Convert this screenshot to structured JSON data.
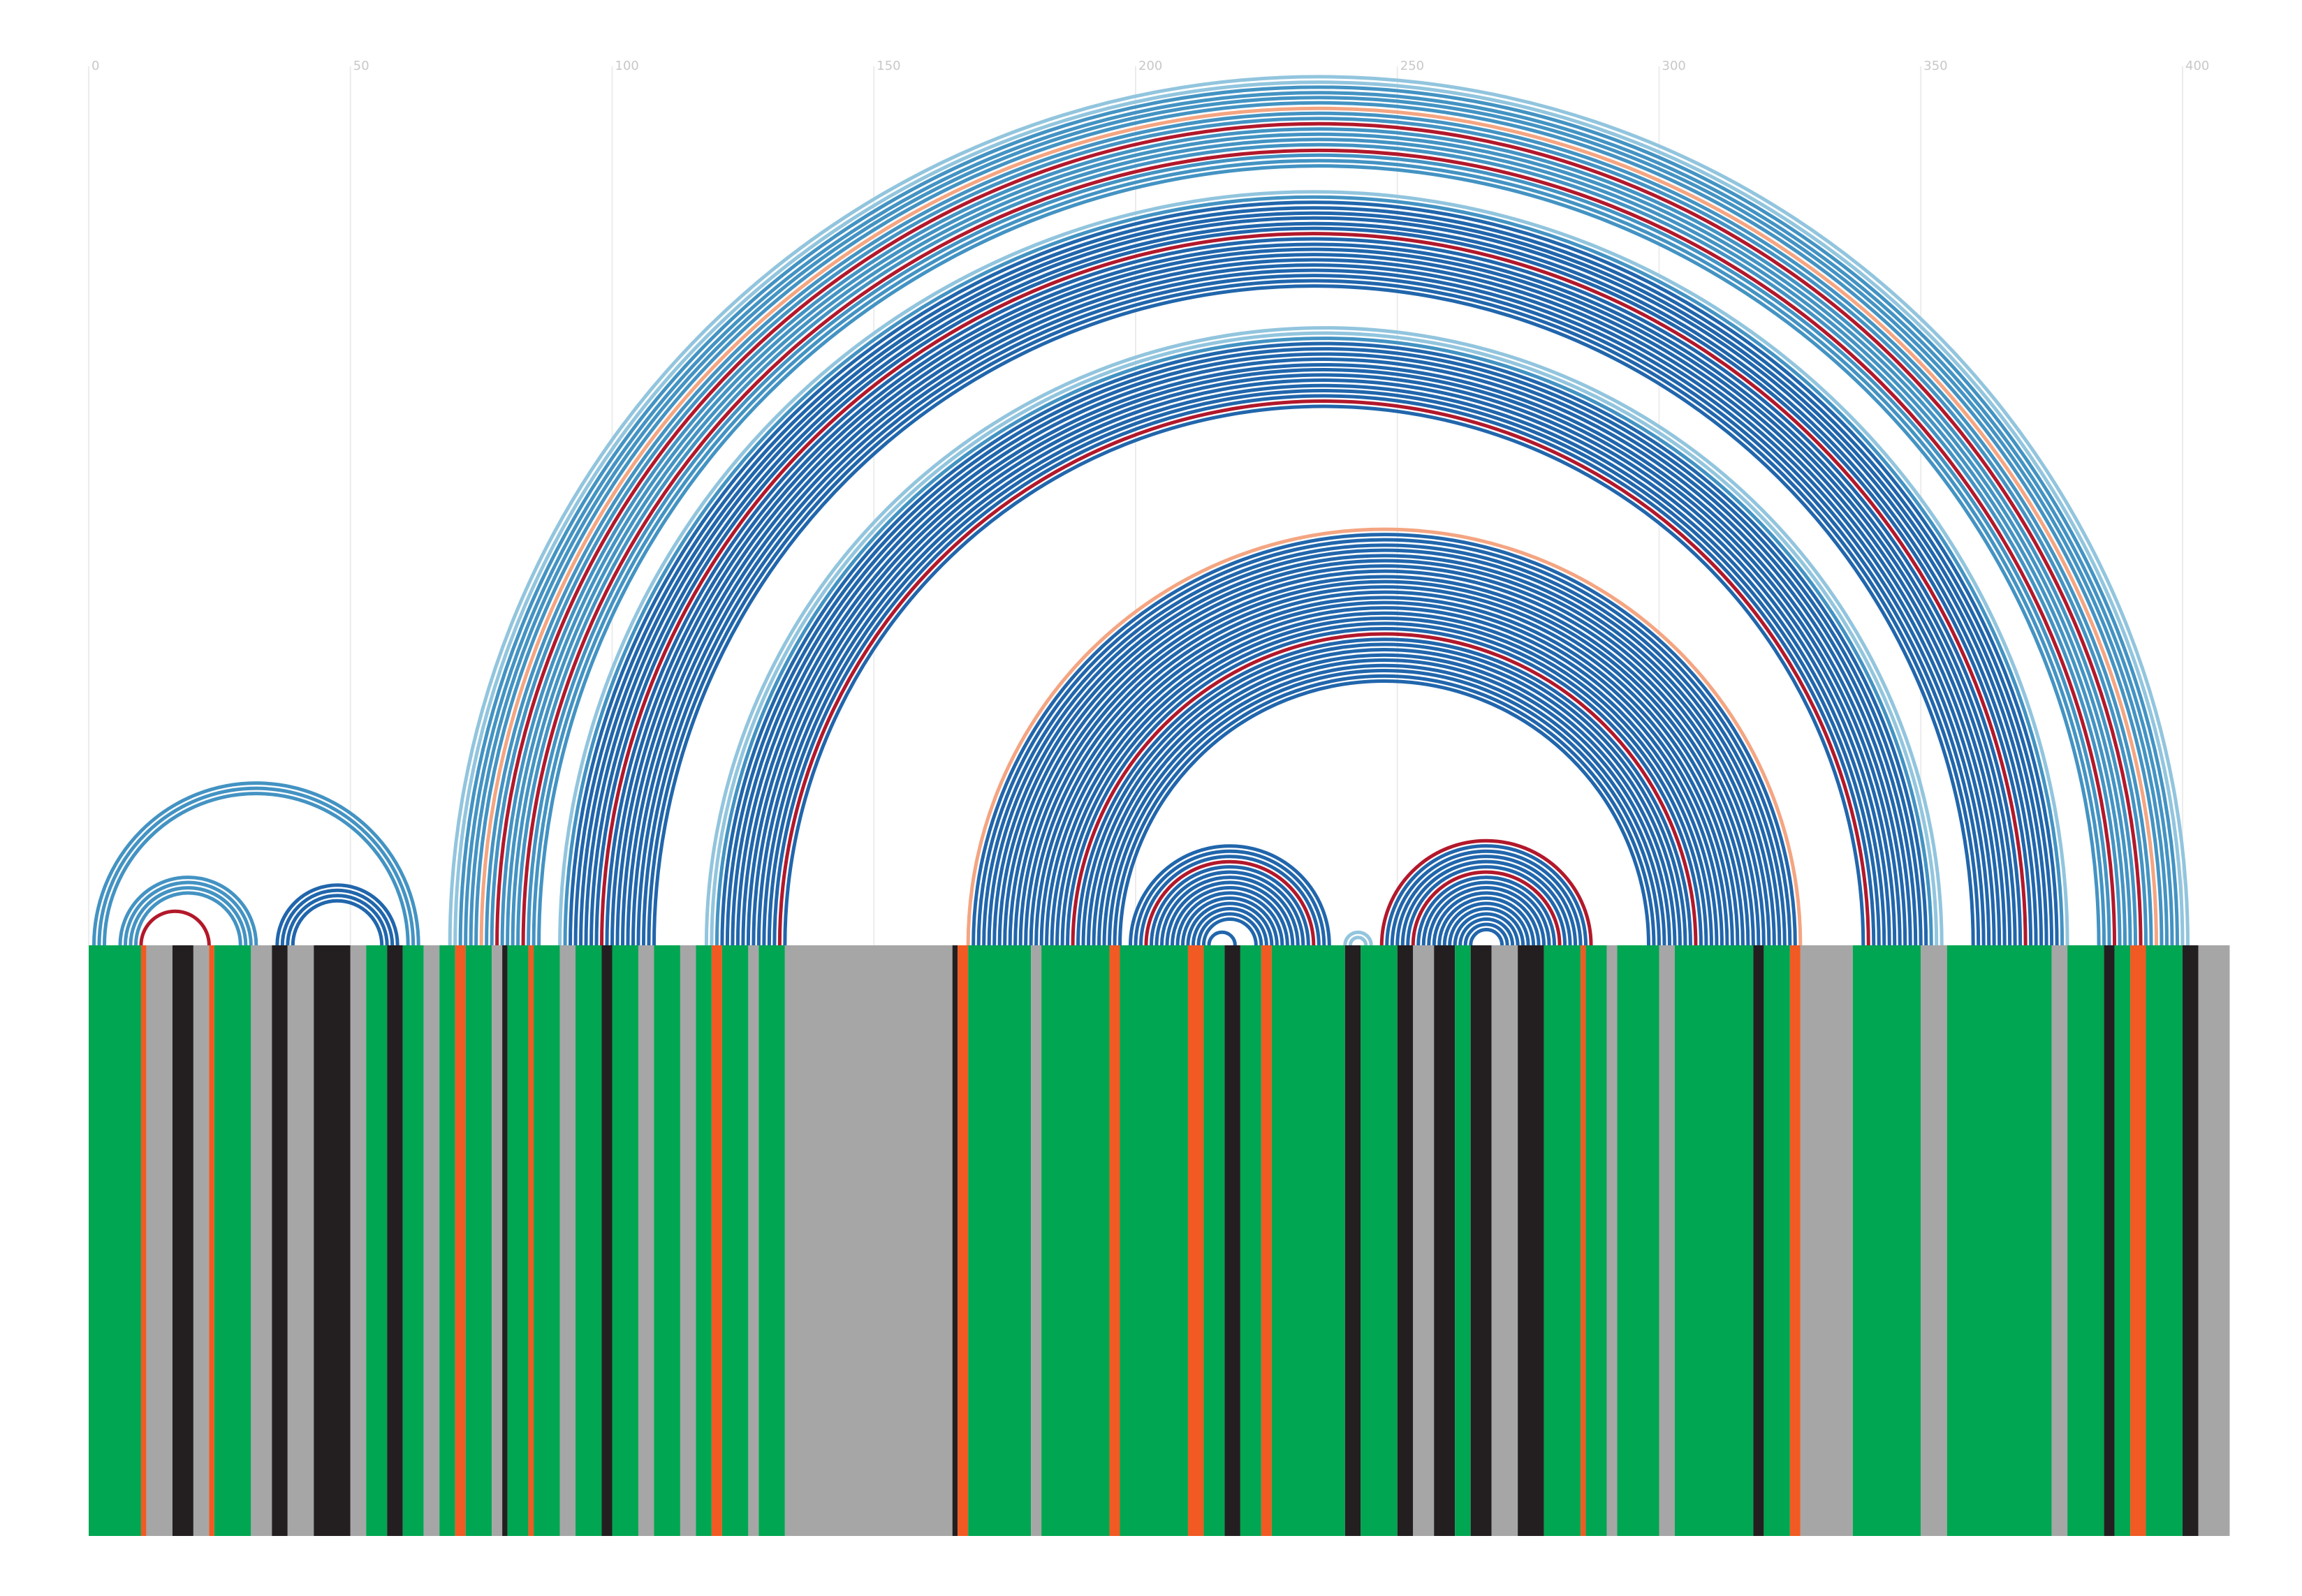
{
  "chart_data": {
    "type": "arc",
    "xlim": [
      0,
      400
    ],
    "xticks": [
      0,
      50,
      100,
      150,
      200,
      250,
      300,
      350,
      400
    ],
    "grid": true,
    "palette": {
      "D": "#2166ac",
      "M": "#4393c3",
      "L": "#92c5de",
      "R": "#b2182b",
      "O": "#f4a582"
    },
    "pairs": [
      [
        1,
        63,
        "M"
      ],
      [
        2,
        62,
        "M"
      ],
      [
        3,
        61,
        "M"
      ],
      [
        6,
        32,
        "M"
      ],
      [
        7,
        31,
        "M"
      ],
      [
        8,
        30,
        "M"
      ],
      [
        9,
        29,
        "M"
      ],
      [
        10,
        23,
        "R"
      ],
      [
        36,
        59,
        "D"
      ],
      [
        37,
        58,
        "D"
      ],
      [
        38,
        57,
        "D"
      ],
      [
        39,
        56,
        "D"
      ],
      [
        69,
        401,
        "L"
      ],
      [
        70,
        400,
        "L"
      ],
      [
        71,
        399,
        "M"
      ],
      [
        72,
        398,
        "M"
      ],
      [
        73,
        397,
        "M"
      ],
      [
        74,
        396,
        "M"
      ],
      [
        75,
        395,
        "O"
      ],
      [
        76,
        394,
        "M"
      ],
      [
        77,
        393,
        "M"
      ],
      [
        78,
        392,
        "R"
      ],
      [
        79,
        391,
        "M"
      ],
      [
        80,
        390,
        "M"
      ],
      [
        81,
        389,
        "M"
      ],
      [
        82,
        388,
        "M"
      ],
      [
        83,
        387,
        "R"
      ],
      [
        84,
        386,
        "M"
      ],
      [
        85,
        385,
        "M"
      ],
      [
        86,
        384,
        "M"
      ],
      [
        90,
        378,
        "L"
      ],
      [
        91,
        377,
        "M"
      ],
      [
        92,
        376,
        "D"
      ],
      [
        93,
        375,
        "D"
      ],
      [
        94,
        374,
        "D"
      ],
      [
        95,
        373,
        "D"
      ],
      [
        96,
        372,
        "D"
      ],
      [
        97,
        371,
        "D"
      ],
      [
        98,
        370,
        "R"
      ],
      [
        99,
        369,
        "D"
      ],
      [
        100,
        368,
        "D"
      ],
      [
        101,
        367,
        "D"
      ],
      [
        102,
        366,
        "D"
      ],
      [
        103,
        365,
        "D"
      ],
      [
        104,
        364,
        "D"
      ],
      [
        105,
        363,
        "D"
      ],
      [
        106,
        362,
        "D"
      ],
      [
        107,
        361,
        "D"
      ],
      [
        108,
        360,
        "D"
      ],
      [
        118,
        354,
        "L"
      ],
      [
        119,
        353,
        "L"
      ],
      [
        120,
        352,
        "M"
      ],
      [
        121,
        351,
        "D"
      ],
      [
        122,
        350,
        "D"
      ],
      [
        123,
        349,
        "D"
      ],
      [
        124,
        348,
        "D"
      ],
      [
        125,
        347,
        "D"
      ],
      [
        126,
        346,
        "D"
      ],
      [
        127,
        345,
        "D"
      ],
      [
        128,
        344,
        "D"
      ],
      [
        129,
        343,
        "D"
      ],
      [
        130,
        342,
        "D"
      ],
      [
        131,
        341,
        "D"
      ],
      [
        132,
        340,
        "R"
      ],
      [
        133,
        339,
        "D"
      ],
      [
        168,
        327,
        "O"
      ],
      [
        169,
        326,
        "D"
      ],
      [
        170,
        325,
        "D"
      ],
      [
        171,
        324,
        "D"
      ],
      [
        172,
        323,
        "D"
      ],
      [
        173,
        322,
        "D"
      ],
      [
        174,
        321,
        "D"
      ],
      [
        175,
        320,
        "D"
      ],
      [
        176,
        319,
        "D"
      ],
      [
        177,
        318,
        "D"
      ],
      [
        178,
        317,
        "D"
      ],
      [
        179,
        316,
        "D"
      ],
      [
        180,
        315,
        "D"
      ],
      [
        181,
        314,
        "D"
      ],
      [
        182,
        313,
        "D"
      ],
      [
        183,
        312,
        "D"
      ],
      [
        184,
        311,
        "D"
      ],
      [
        185,
        310,
        "D"
      ],
      [
        186,
        309,
        "D"
      ],
      [
        187,
        308,
        "D"
      ],
      [
        188,
        307,
        "R"
      ],
      [
        189,
        306,
        "D"
      ],
      [
        190,
        305,
        "D"
      ],
      [
        191,
        304,
        "D"
      ],
      [
        192,
        303,
        "D"
      ],
      [
        193,
        302,
        "D"
      ],
      [
        194,
        301,
        "D"
      ],
      [
        195,
        300,
        "D"
      ],
      [
        196,
        299,
        "D"
      ],
      [
        197,
        298,
        "D"
      ],
      [
        199,
        237,
        "D"
      ],
      [
        200,
        236,
        "D"
      ],
      [
        201,
        235,
        "D"
      ],
      [
        202,
        234,
        "R"
      ],
      [
        203,
        233,
        "D"
      ],
      [
        204,
        232,
        "D"
      ],
      [
        205,
        231,
        "D"
      ],
      [
        206,
        230,
        "D"
      ],
      [
        207,
        229,
        "D"
      ],
      [
        208,
        228,
        "D"
      ],
      [
        209,
        227,
        "D"
      ],
      [
        210,
        226,
        "D"
      ],
      [
        211,
        225,
        "D"
      ],
      [
        212,
        224,
        "D"
      ],
      [
        213,
        223,
        "D"
      ],
      [
        214,
        219,
        "D"
      ],
      [
        240,
        245,
        "L"
      ],
      [
        241,
        244,
        "L"
      ],
      [
        247,
        287,
        "R"
      ],
      [
        248,
        286,
        "D"
      ],
      [
        249,
        285,
        "D"
      ],
      [
        250,
        284,
        "D"
      ],
      [
        251,
        283,
        "D"
      ],
      [
        252,
        282,
        "D"
      ],
      [
        253,
        281,
        "R"
      ],
      [
        254,
        280,
        "D"
      ],
      [
        255,
        279,
        "D"
      ],
      [
        256,
        278,
        "D"
      ],
      [
        257,
        277,
        "D"
      ],
      [
        258,
        276,
        "D"
      ],
      [
        259,
        275,
        "D"
      ],
      [
        260,
        274,
        "D"
      ],
      [
        261,
        273,
        "D"
      ],
      [
        262,
        272,
        "D"
      ],
      [
        263,
        271,
        "D"
      ],
      [
        264,
        270,
        "D"
      ]
    ],
    "alignment_palette": {
      "G": "#00a651",
      "K": "#231f20",
      "A": "#a6a6a6",
      "O": "#f15a22"
    },
    "alignment": [
      [
        0,
        10,
        "G"
      ],
      [
        10,
        11,
        "O"
      ],
      [
        11,
        16,
        "A"
      ],
      [
        16,
        20,
        "K"
      ],
      [
        20,
        23,
        "A"
      ],
      [
        23,
        24,
        "O"
      ],
      [
        24,
        31,
        "G"
      ],
      [
        31,
        35,
        "A"
      ],
      [
        35,
        38,
        "K"
      ],
      [
        38,
        43,
        "A"
      ],
      [
        43,
        50,
        "K"
      ],
      [
        50,
        53,
        "A"
      ],
      [
        53,
        57,
        "G"
      ],
      [
        57,
        60,
        "K"
      ],
      [
        60,
        64,
        "G"
      ],
      [
        64,
        67,
        "A"
      ],
      [
        67,
        70,
        "G"
      ],
      [
        70,
        72,
        "O"
      ],
      [
        72,
        77,
        "G"
      ],
      [
        77,
        79,
        "A"
      ],
      [
        79,
        80,
        "K"
      ],
      [
        80,
        84,
        "G"
      ],
      [
        84,
        85,
        "O"
      ],
      [
        85,
        90,
        "G"
      ],
      [
        90,
        93,
        "A"
      ],
      [
        93,
        98,
        "G"
      ],
      [
        98,
        100,
        "K"
      ],
      [
        100,
        105,
        "G"
      ],
      [
        105,
        108,
        "A"
      ],
      [
        108,
        113,
        "G"
      ],
      [
        113,
        116,
        "A"
      ],
      [
        116,
        119,
        "G"
      ],
      [
        119,
        121,
        "O"
      ],
      [
        121,
        126,
        "G"
      ],
      [
        126,
        128,
        "A"
      ],
      [
        128,
        133,
        "G"
      ],
      [
        133,
        165,
        "A"
      ],
      [
        165,
        166,
        "K"
      ],
      [
        166,
        168,
        "O"
      ],
      [
        168,
        180,
        "G"
      ],
      [
        180,
        182,
        "A"
      ],
      [
        182,
        195,
        "G"
      ],
      [
        195,
        197,
        "O"
      ],
      [
        197,
        210,
        "G"
      ],
      [
        210,
        213,
        "O"
      ],
      [
        213,
        217,
        "G"
      ],
      [
        217,
        220,
        "K"
      ],
      [
        220,
        224,
        "G"
      ],
      [
        224,
        226,
        "O"
      ],
      [
        226,
        240,
        "G"
      ],
      [
        240,
        243,
        "K"
      ],
      [
        243,
        250,
        "G"
      ],
      [
        250,
        253,
        "K"
      ],
      [
        253,
        257,
        "A"
      ],
      [
        257,
        261,
        "K"
      ],
      [
        261,
        264,
        "G"
      ],
      [
        264,
        268,
        "K"
      ],
      [
        268,
        273,
        "A"
      ],
      [
        273,
        278,
        "K"
      ],
      [
        278,
        285,
        "G"
      ],
      [
        285,
        286,
        "O"
      ],
      [
        286,
        290,
        "G"
      ],
      [
        290,
        292,
        "A"
      ],
      [
        292,
        300,
        "G"
      ],
      [
        300,
        303,
        "A"
      ],
      [
        303,
        318,
        "G"
      ],
      [
        318,
        320,
        "K"
      ],
      [
        320,
        325,
        "G"
      ],
      [
        325,
        327,
        "O"
      ],
      [
        327,
        337,
        "A"
      ],
      [
        337,
        350,
        "G"
      ],
      [
        350,
        355,
        "A"
      ],
      [
        355,
        375,
        "G"
      ],
      [
        375,
        378,
        "A"
      ],
      [
        378,
        385,
        "G"
      ],
      [
        385,
        387,
        "K"
      ],
      [
        387,
        390,
        "G"
      ],
      [
        390,
        393,
        "O"
      ],
      [
        393,
        400,
        "G"
      ],
      [
        400,
        403,
        "K"
      ],
      [
        403,
        409,
        "A"
      ]
    ]
  }
}
